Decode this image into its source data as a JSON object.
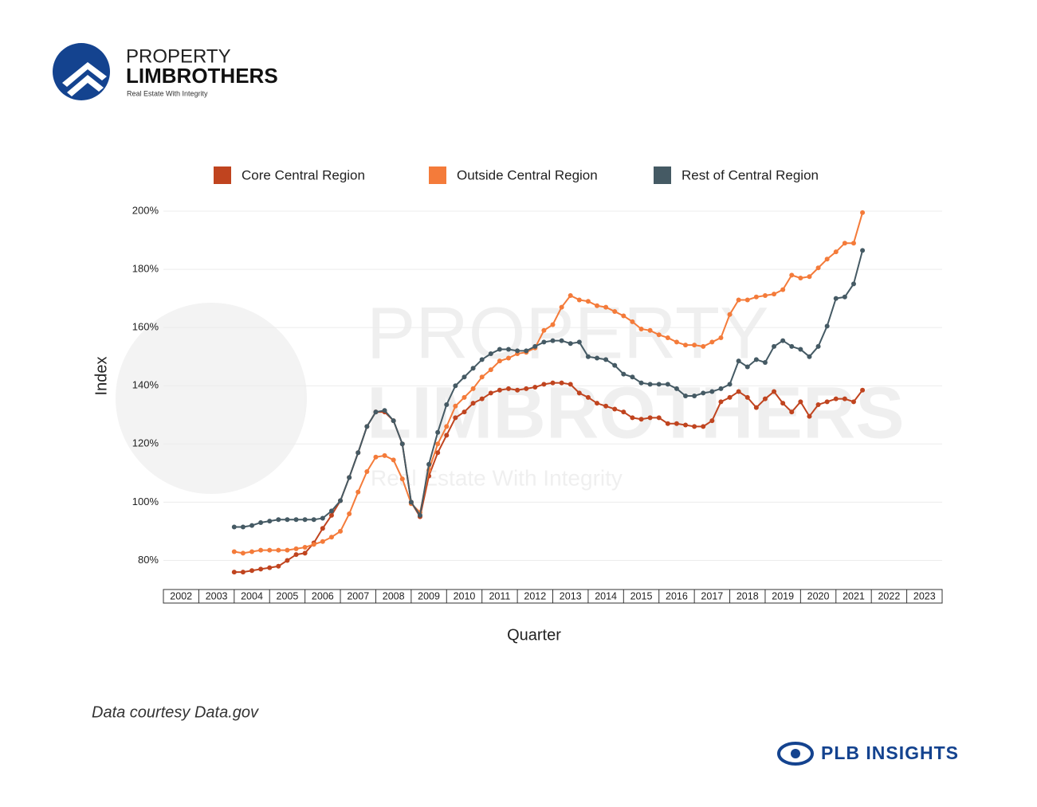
{
  "logo": {
    "line1": "PROPERTY",
    "line2": "LIMBROTHERS",
    "tagline": "Real Estate With Integrity"
  },
  "footer": {
    "source": "Data courtesy Data.gov",
    "brand": "PLB INSIGHTS"
  },
  "chart_data": {
    "type": "line",
    "xlabel": "Quarter",
    "ylabel": "Index",
    "grid": true,
    "xlim": [
      2002,
      2024
    ],
    "xticks": [
      2002,
      2003,
      2004,
      2005,
      2006,
      2007,
      2008,
      2009,
      2010,
      2011,
      2012,
      2013,
      2014,
      2015,
      2016,
      2017,
      2018,
      2019,
      2020,
      2021,
      2022,
      2023
    ],
    "ylim": [
      70,
      200
    ],
    "yticks": [
      {
        "value": 80,
        "label": "80%"
      },
      {
        "value": 100,
        "label": "100%"
      },
      {
        "value": 120,
        "label": "120%"
      },
      {
        "value": 140,
        "label": "140%"
      },
      {
        "value": 160,
        "label": "160%"
      },
      {
        "value": 180,
        "label": "180%"
      },
      {
        "value": 200,
        "label": "200%"
      }
    ],
    "x": [
      2004,
      2004.25,
      2004.5,
      2004.75,
      2005,
      2005.25,
      2005.5,
      2005.75,
      2006,
      2006.25,
      2006.5,
      2006.75,
      2007,
      2007.25,
      2007.5,
      2007.75,
      2008,
      2008.25,
      2008.5,
      2008.75,
      2009,
      2009.25,
      2009.5,
      2009.75,
      2010,
      2010.25,
      2010.5,
      2010.75,
      2011,
      2011.25,
      2011.5,
      2011.75,
      2012,
      2012.25,
      2012.5,
      2012.75,
      2013,
      2013.25,
      2013.5,
      2013.75,
      2014,
      2014.25,
      2014.5,
      2014.75,
      2015,
      2015.25,
      2015.5,
      2015.75,
      2016,
      2016.25,
      2016.5,
      2016.75,
      2017,
      2017.25,
      2017.5,
      2017.75,
      2018,
      2018.25,
      2018.5,
      2018.75,
      2019,
      2019.25,
      2019.5,
      2019.75,
      2020,
      2020.25,
      2020.5,
      2020.75,
      2021,
      2021.25,
      2021.5,
      2021.75
    ],
    "series": [
      {
        "name": "Core Central Region",
        "color": "#c0441f",
        "values": [
          76,
          76,
          76.5,
          77,
          77.5,
          78,
          80,
          82,
          82.5,
          86,
          91,
          95.5,
          100.5,
          108.5,
          117,
          126,
          131,
          131,
          128,
          120,
          100,
          95,
          109,
          117,
          123,
          129,
          131,
          134,
          135.5,
          137.5,
          138.5,
          139,
          138.5,
          139,
          139.5,
          140.5,
          141,
          141,
          140.5,
          137.5,
          136,
          134,
          133,
          132,
          131,
          129,
          128.5,
          129,
          129,
          127,
          127,
          126.5,
          126,
          126,
          128,
          134.5,
          136,
          138,
          136,
          132.5,
          135.5,
          138,
          134,
          131,
          134.5,
          129.5,
          133.5,
          134.5,
          135.5,
          135.5,
          134.5,
          138.5
        ]
      },
      {
        "name": "Outside Central Region",
        "color": "#f47b3a",
        "values": [
          83,
          82.5,
          83,
          83.5,
          83.5,
          83.5,
          83.5,
          84,
          84.5,
          85.5,
          86.5,
          88,
          90,
          96,
          103.5,
          110.5,
          115.5,
          116,
          114.5,
          108,
          99.5,
          96.5,
          111,
          120,
          126,
          133,
          136,
          139,
          143,
          145.5,
          148.5,
          149.5,
          151,
          151.5,
          153,
          159,
          161,
          167,
          171,
          169.5,
          169,
          167.5,
          167,
          165.5,
          164,
          162,
          159.5,
          159,
          157.5,
          156.5,
          155,
          154,
          154,
          153.5,
          155,
          156.5,
          164.5,
          169.5,
          169.5,
          170.5,
          171,
          171.5,
          173,
          178,
          177,
          177.5,
          180.5,
          183.5,
          186,
          189,
          189,
          199.5
        ]
      },
      {
        "name": "Rest of Central Region",
        "color": "#455a64",
        "values": [
          91.5,
          91.5,
          92,
          93,
          93.5,
          94,
          94,
          94,
          94,
          94,
          94.5,
          97,
          100.5,
          108.5,
          117,
          126,
          131,
          131.5,
          128,
          120,
          100,
          95.5,
          113,
          124,
          133.5,
          140,
          143,
          146,
          149,
          151,
          152.5,
          152.5,
          152,
          152,
          153.5,
          155,
          155.5,
          155.5,
          154.5,
          155,
          150,
          149.5,
          149,
          147,
          144,
          143,
          141,
          140.5,
          140.5,
          140.5,
          139,
          136.5,
          136.5,
          137.5,
          138,
          139,
          140.5,
          148.5,
          146.5,
          149,
          148,
          153.5,
          155.5,
          153.5,
          152.5,
          150,
          153.5,
          160.5,
          170,
          170.5,
          175,
          186.5
        ]
      }
    ]
  }
}
